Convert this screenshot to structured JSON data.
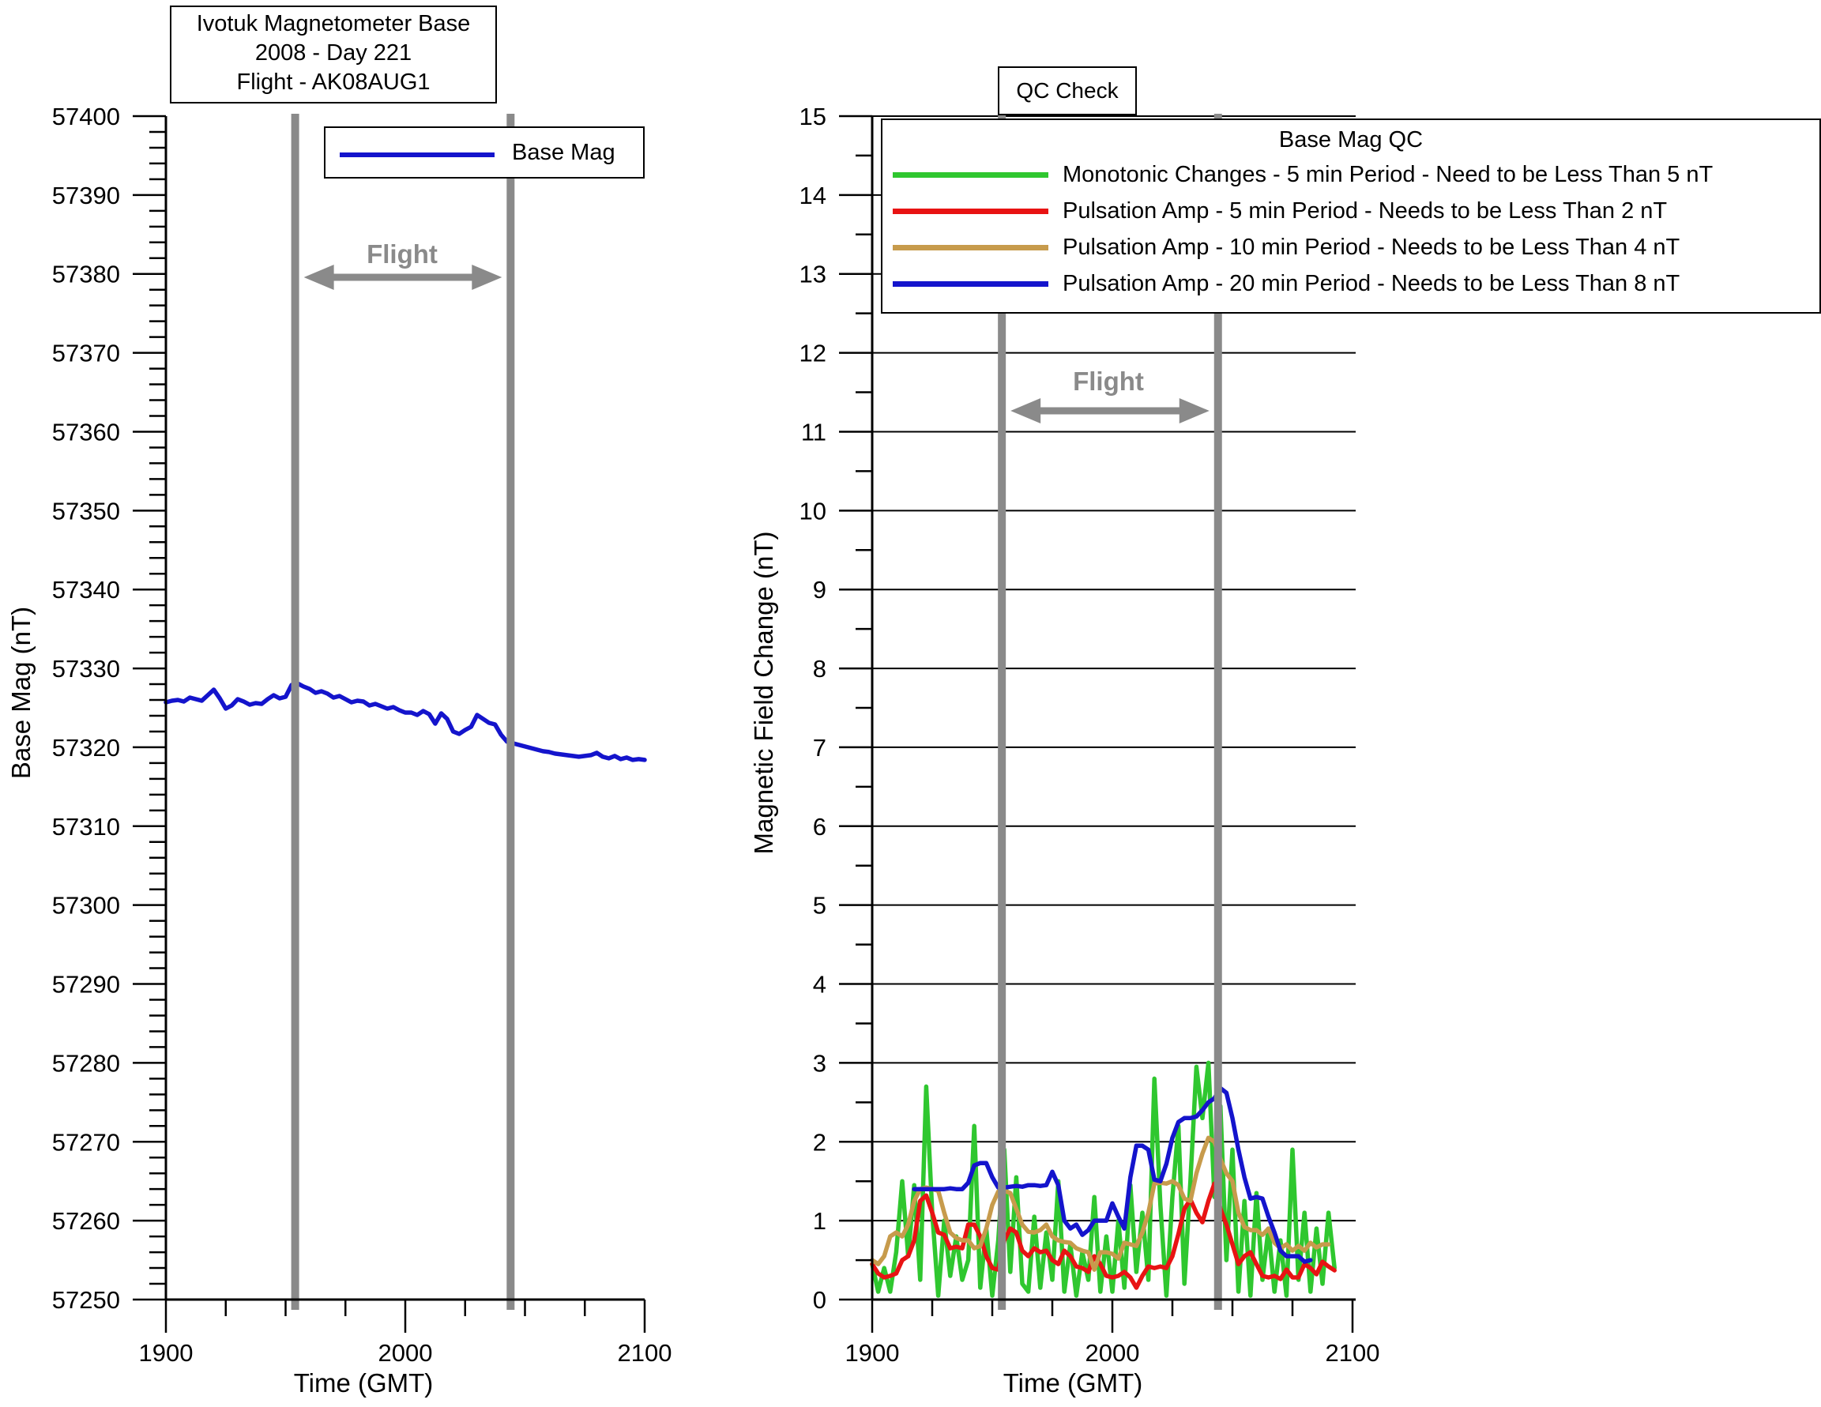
{
  "left_panel": {
    "title_lines": [
      "Ivotuk Magnetometer Base",
      "2008 - Day 221",
      "Flight - AK08AUG1"
    ],
    "legend": {
      "label": "Base Mag"
    },
    "ylabel": "Base Mag (nT)",
    "xlabel": "Time (GMT)",
    "flight_label": "Flight"
  },
  "right_panel": {
    "title": "QC Check",
    "legend": {
      "title": "Base Mag QC",
      "entries": [
        {
          "label": "Monotonic Changes - 5 min Period - Need to be Less Than 5 nT",
          "color": "#2fc72f"
        },
        {
          "label": "Pulsation Amp - 5 min Period - Needs to be Less Than 2 nT",
          "color": "#e81313"
        },
        {
          "label": "Pulsation Amp - 10 min Period - Needs to be Less Than 4 nT",
          "color": "#c79b4c"
        },
        {
          "label": "Pulsation Amp - 20 min Period - Needs to be Less Than 8 nT",
          "color": "#1414cc"
        }
      ]
    },
    "ylabel": "Magnetic Field Change (nT)",
    "xlabel": "Time (GMT)",
    "flight_label": "Flight"
  },
  "colors": {
    "base_mag": "#1414cc",
    "flight_marker": "#8a8a8a",
    "axis": "#000000",
    "grid": "#000000"
  },
  "chart_data": [
    {
      "type": "line",
      "title": "Ivotuk Magnetometer Base 2008 - Day 221 Flight - AK08AUG1",
      "xlabel": "Time (GMT)",
      "ylabel": "Base Mag (nT)",
      "xlim": [
        1900,
        2100
      ],
      "ylim": [
        57250,
        57400
      ],
      "xticks": [
        1900,
        2000,
        2100
      ],
      "x_minor_step": 25,
      "ytick_step": 10,
      "y_minor_step": 2,
      "grid": false,
      "legend_position": "top-right",
      "flight_markers": [
        1954,
        2044
      ],
      "series": [
        {
          "name": "Base Mag",
          "color": "#1414cc",
          "x_start": 1900,
          "x_step": 2.5,
          "values": [
            57325.7,
            57325.9,
            57326.0,
            57325.8,
            57326.3,
            57326.1,
            57325.9,
            57326.6,
            57327.3,
            57326.2,
            57324.9,
            57325.3,
            57326.1,
            57325.8,
            57325.4,
            57325.6,
            57325.5,
            57326.1,
            57326.6,
            57326.2,
            57326.4,
            57327.9,
            57328.1,
            57327.7,
            57327.4,
            57326.9,
            57327.1,
            57326.8,
            57326.3,
            57326.5,
            57326.1,
            57325.7,
            57325.9,
            57325.8,
            57325.3,
            57325.5,
            57325.2,
            57324.9,
            57325.1,
            57324.7,
            57324.4,
            57324.4,
            57324.1,
            57324.6,
            57324.2,
            57323.0,
            57324.3,
            57323.6,
            57322.0,
            57321.7,
            57322.2,
            57322.6,
            57324.1,
            57323.6,
            57323.1,
            57322.9,
            57321.6,
            57320.7,
            57320.5,
            57320.3,
            57320.1,
            57319.9,
            57319.7,
            57319.5,
            57319.4,
            57319.2,
            57319.1,
            57319.0,
            57318.9,
            57318.8,
            57318.9,
            57319.0,
            57319.3,
            57318.8,
            57318.6,
            57318.9,
            57318.5,
            57318.7,
            57318.4,
            57318.5,
            57318.4
          ]
        }
      ]
    },
    {
      "type": "line",
      "title": "QC Check",
      "xlabel": "Time (GMT)",
      "ylabel": "Magnetic Field Change (nT)",
      "xlim": [
        1900,
        2100
      ],
      "ylim": [
        0,
        15
      ],
      "xticks": [
        1900,
        2000,
        2100
      ],
      "x_minor_step": 25,
      "ytick_step": 1,
      "y_minor_step": 0.5,
      "grid": true,
      "legend_position": "top",
      "flight_markers": [
        1954,
        2044
      ],
      "series": [
        {
          "name": "Monotonic Changes - 5 min Period - Need to be Less Than 5 nT",
          "color": "#2fc72f",
          "x_start": 1900,
          "x_step": 2.5,
          "values": [
            0.45,
            0.1,
            0.4,
            0.1,
            0.6,
            1.5,
            0.55,
            1.45,
            0.25,
            2.7,
            1.1,
            0.05,
            1.0,
            0.3,
            0.8,
            0.25,
            0.5,
            2.2,
            0.15,
            0.9,
            0.05,
            0.75,
            1.9,
            0.35,
            1.55,
            0.2,
            0.1,
            1.05,
            0.15,
            0.85,
            0.25,
            1.5,
            0.1,
            0.7,
            0.05,
            0.6,
            0.25,
            1.3,
            0.1,
            0.8,
            0.1,
            1.0,
            0.15,
            1.45,
            0.35,
            1.1,
            0.25,
            2.8,
            1.2,
            0.05,
            1.3,
            2.2,
            0.2,
            1.5,
            2.95,
            2.3,
            3.0,
            1.3,
            2.45,
            0.5,
            1.9,
            0.1,
            1.25,
            0.05,
            1.35,
            0.25,
            0.9,
            0.1,
            0.75,
            0.05,
            1.9,
            0.25,
            1.1,
            0.1,
            0.9,
            0.2,
            1.1,
            0.4
          ]
        },
        {
          "name": "Pulsation Amp - 5 min Period - Needs to be Less Than 2 nT",
          "color": "#e81313",
          "x_start": 1900,
          "x_step": 2.5,
          "values": [
            0.45,
            0.33,
            0.28,
            0.3,
            0.33,
            0.5,
            0.55,
            0.75,
            1.25,
            1.32,
            1.1,
            0.85,
            0.82,
            0.65,
            0.67,
            0.65,
            0.95,
            0.95,
            0.8,
            0.55,
            0.4,
            0.38,
            0.75,
            0.9,
            0.85,
            0.62,
            0.55,
            0.65,
            0.6,
            0.62,
            0.5,
            0.45,
            0.62,
            0.55,
            0.42,
            0.4,
            0.35,
            0.55,
            0.45,
            0.3,
            0.28,
            0.3,
            0.35,
            0.28,
            0.15,
            0.3,
            0.42,
            0.4,
            0.42,
            0.4,
            0.55,
            0.83,
            1.15,
            1.27,
            1.1,
            0.98,
            1.25,
            1.47,
            1.15,
            0.95,
            0.7,
            0.45,
            0.55,
            0.6,
            0.45,
            0.3,
            0.28,
            0.3,
            0.26,
            0.38,
            0.28,
            0.28,
            0.45,
            0.4,
            0.32,
            0.48,
            0.42,
            0.37
          ]
        },
        {
          "name": "Pulsation Amp - 10 min Period - Needs to be Less Than 4 nT",
          "color": "#c79b4c",
          "x_start": 1900,
          "x_step": 2.5,
          "values": [
            0.5,
            0.45,
            0.55,
            0.8,
            0.85,
            0.8,
            0.95,
            1.25,
            1.4,
            1.42,
            1.4,
            1.38,
            1.1,
            0.85,
            0.78,
            0.75,
            0.75,
            0.65,
            0.68,
            0.9,
            1.2,
            1.37,
            1.38,
            1.35,
            1.15,
            0.95,
            0.86,
            0.85,
            0.88,
            0.95,
            0.8,
            0.75,
            0.73,
            0.72,
            0.65,
            0.62,
            0.6,
            0.38,
            0.6,
            0.6,
            0.58,
            0.52,
            0.72,
            0.7,
            0.68,
            0.85,
            1.1,
            1.47,
            1.48,
            1.47,
            1.5,
            1.45,
            1.28,
            1.25,
            1.6,
            1.85,
            2.05,
            2.0,
            1.78,
            1.6,
            1.5,
            1.1,
            0.92,
            0.88,
            0.88,
            0.82,
            0.9,
            0.72,
            0.65,
            0.7,
            0.62,
            0.68,
            0.62,
            0.72,
            0.66,
            0.7,
            0.7
          ]
        },
        {
          "name": "Pulsation Amp - 20 min Period - Needs to be Less Than 8 nT",
          "color": "#1414cc",
          "x_start": 1917.5,
          "x_step": 2.5,
          "values": [
            1.4,
            1.4,
            1.4,
            1.4,
            1.4,
            1.4,
            1.41,
            1.4,
            1.4,
            1.48,
            1.7,
            1.73,
            1.73,
            1.55,
            1.42,
            1.42,
            1.43,
            1.44,
            1.43,
            1.45,
            1.45,
            1.44,
            1.45,
            1.62,
            1.45,
            1.0,
            0.9,
            0.95,
            0.82,
            0.88,
            1.0,
            1.0,
            1.0,
            1.22,
            1.05,
            0.9,
            1.55,
            1.95,
            1.95,
            1.9,
            1.52,
            1.5,
            1.72,
            2.05,
            2.25,
            2.3,
            2.3,
            2.32,
            2.4,
            2.5,
            2.55,
            2.68,
            2.62,
            2.3,
            1.9,
            1.55,
            1.28,
            1.3,
            1.28,
            1.05,
            0.85,
            0.62,
            0.55,
            0.55,
            0.55,
            0.48,
            0.5
          ]
        }
      ]
    }
  ]
}
